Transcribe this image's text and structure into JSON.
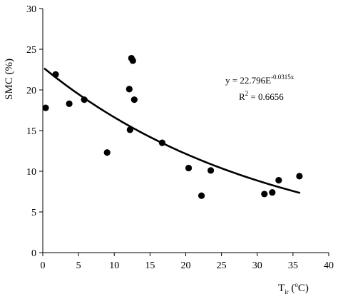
{
  "chart_data": {
    "type": "scatter",
    "title": "",
    "xlabel": {
      "main": "T",
      "sub": "ir",
      "unit_open": " (",
      "unit_sup": "o",
      "unit_close": "C)"
    },
    "ylabel": "SMC (%)",
    "xlim": [
      0,
      40
    ],
    "ylim": [
      0,
      30
    ],
    "xticks": [
      0,
      5,
      10,
      15,
      20,
      25,
      30,
      35,
      40
    ],
    "yticks": [
      0,
      5,
      10,
      15,
      20,
      25,
      30
    ],
    "grid": false,
    "points": [
      {
        "x": 0.4,
        "y": 17.8
      },
      {
        "x": 1.8,
        "y": 21.9
      },
      {
        "x": 3.7,
        "y": 18.3
      },
      {
        "x": 5.8,
        "y": 18.8
      },
      {
        "x": 9.0,
        "y": 12.3
      },
      {
        "x": 12.1,
        "y": 20.1
      },
      {
        "x": 12.2,
        "y": 15.1
      },
      {
        "x": 12.4,
        "y": 23.9
      },
      {
        "x": 12.6,
        "y": 23.6
      },
      {
        "x": 12.8,
        "y": 18.8
      },
      {
        "x": 16.7,
        "y": 13.5
      },
      {
        "x": 20.4,
        "y": 10.4
      },
      {
        "x": 22.2,
        "y": 7.0
      },
      {
        "x": 23.5,
        "y": 10.1
      },
      {
        "x": 31.0,
        "y": 7.2
      },
      {
        "x": 32.1,
        "y": 7.4
      },
      {
        "x": 33.0,
        "y": 8.9
      },
      {
        "x": 35.9,
        "y": 9.4
      }
    ],
    "trendline": {
      "type": "exponential",
      "a": 22.796,
      "b": -0.0315,
      "x_range": [
        0.2,
        36
      ]
    },
    "equation": {
      "prefix": "y = 22.796E",
      "exponent": "-0.0315x"
    },
    "r_squared": {
      "label": "R",
      "sup": "2",
      "value": " = 0.6656"
    },
    "colors": {
      "marker": "#000000",
      "line": "#000000",
      "axis": "#000000"
    }
  }
}
